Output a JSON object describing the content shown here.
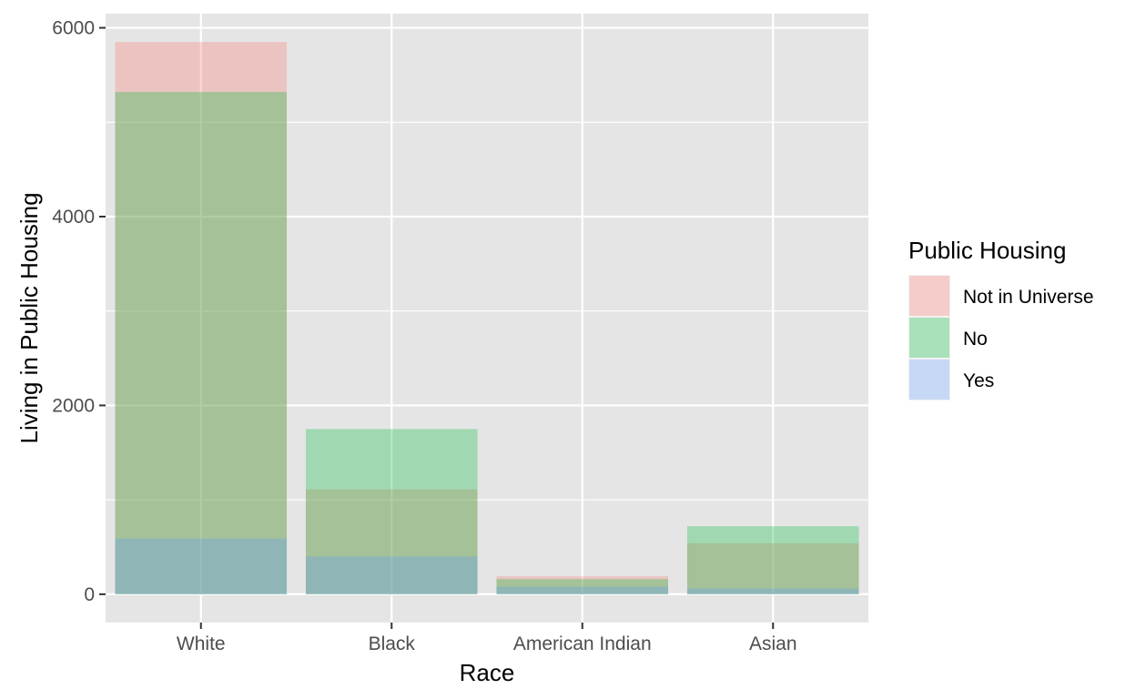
{
  "chart_data": {
    "type": "bar",
    "position": "overlapping (identity)",
    "categories": [
      "White",
      "Black",
      "American Indian",
      "Asian"
    ],
    "series": [
      {
        "name": "Not in Universe",
        "values": [
          5850,
          1110,
          190,
          540
        ],
        "color": "#F8766D"
      },
      {
        "name": "No",
        "values": [
          5320,
          1750,
          160,
          720
        ],
        "color": "#00BA38"
      },
      {
        "name": "Yes",
        "values": [
          590,
          400,
          80,
          60
        ],
        "color": "#619CFF"
      }
    ],
    "fill_alpha": 0.3,
    "xlabel": "Race",
    "ylabel": "Living in Public Housing",
    "ylim": [
      -300,
      6150
    ],
    "y_ticks": [
      0,
      2000,
      4000,
      6000
    ],
    "y_tick_labels": [
      "0",
      "2000",
      "4000",
      "6000"
    ],
    "y_minor_ticks": [
      1000,
      3000,
      5000
    ],
    "grid": true,
    "legend": {
      "title": "Public Housing",
      "placement": "right"
    },
    "panel_background": "#E5E5E5",
    "grid_color": "#FFFFFF"
  }
}
